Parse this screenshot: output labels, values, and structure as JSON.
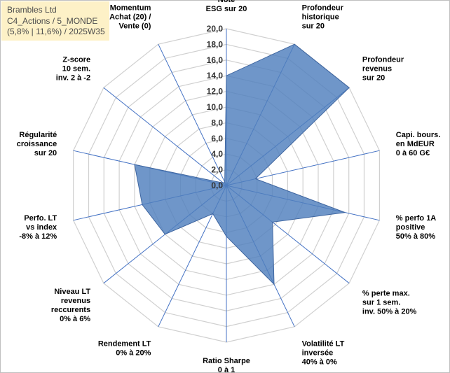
{
  "title_box": {
    "line1": "Brambles Ltd",
    "line2": "C4_Actions / 5_MONDE",
    "line3": "(5,8% | 11,6%) / 2025W35"
  },
  "colors": {
    "fill": "#4f7fbd",
    "stroke": "#3f66a0",
    "grid": "#d0d0d0",
    "spoke": "#4472c4"
  },
  "chart_data": {
    "type": "radar",
    "rmin": 0,
    "rmax": 20,
    "rings": [
      0,
      2,
      4,
      6,
      8,
      10,
      12,
      14,
      16,
      18,
      20
    ],
    "tick_labels": [
      "0,0",
      "2,0",
      "4,0",
      "6,0",
      "8,0",
      "10,0",
      "12,0",
      "14,0",
      "16,0",
      "18,0",
      "20,0"
    ],
    "axes": [
      {
        "label": [
          "Note",
          "ESG sur 20"
        ],
        "value": 14
      },
      {
        "label": [
          "Profondeur",
          "historique",
          "sur 20"
        ],
        "value": 20
      },
      {
        "label": [
          "Profondeur",
          "revenus",
          "sur 20"
        ],
        "value": 20
      },
      {
        "label": [
          "Capi. bours.",
          "en MdEUR",
          "0 à 60 G€"
        ],
        "value": 3.8
      },
      {
        "label": [
          "% perfo 1A",
          "positive",
          "50% à 80%"
        ],
        "value": 15.5
      },
      {
        "label": [
          "% perte max.",
          "sur 1 sem.",
          "inv. 50% à 20%"
        ],
        "value": 7.5
      },
      {
        "label": [
          "Volatilité LT",
          "inversée",
          "40% à 0%"
        ],
        "value": 14
      },
      {
        "label": [
          "Ratio Sharpe",
          "0 à 1"
        ],
        "value": 6.5
      },
      {
        "label": [
          "Rendement LT",
          "0% à 20%"
        ],
        "value": 4
      },
      {
        "label": [
          "Niveau LT",
          "revenus",
          "reccurents",
          "0% à 6%"
        ],
        "value": 10
      },
      {
        "label": [
          "Perfo. LT",
          "vs index",
          "-8% à 12%"
        ],
        "value": 11
      },
      {
        "label": [
          "Régularité",
          "croissance",
          "sur 20"
        ],
        "value": 12
      },
      {
        "label": [
          "Z-score",
          "10 sem.",
          "inv. 2 à -2"
        ],
        "value": 0.5
      },
      {
        "label": [
          "Momentum",
          "Achat (20) /",
          "Vente (0)"
        ],
        "value": 0.5
      }
    ]
  }
}
